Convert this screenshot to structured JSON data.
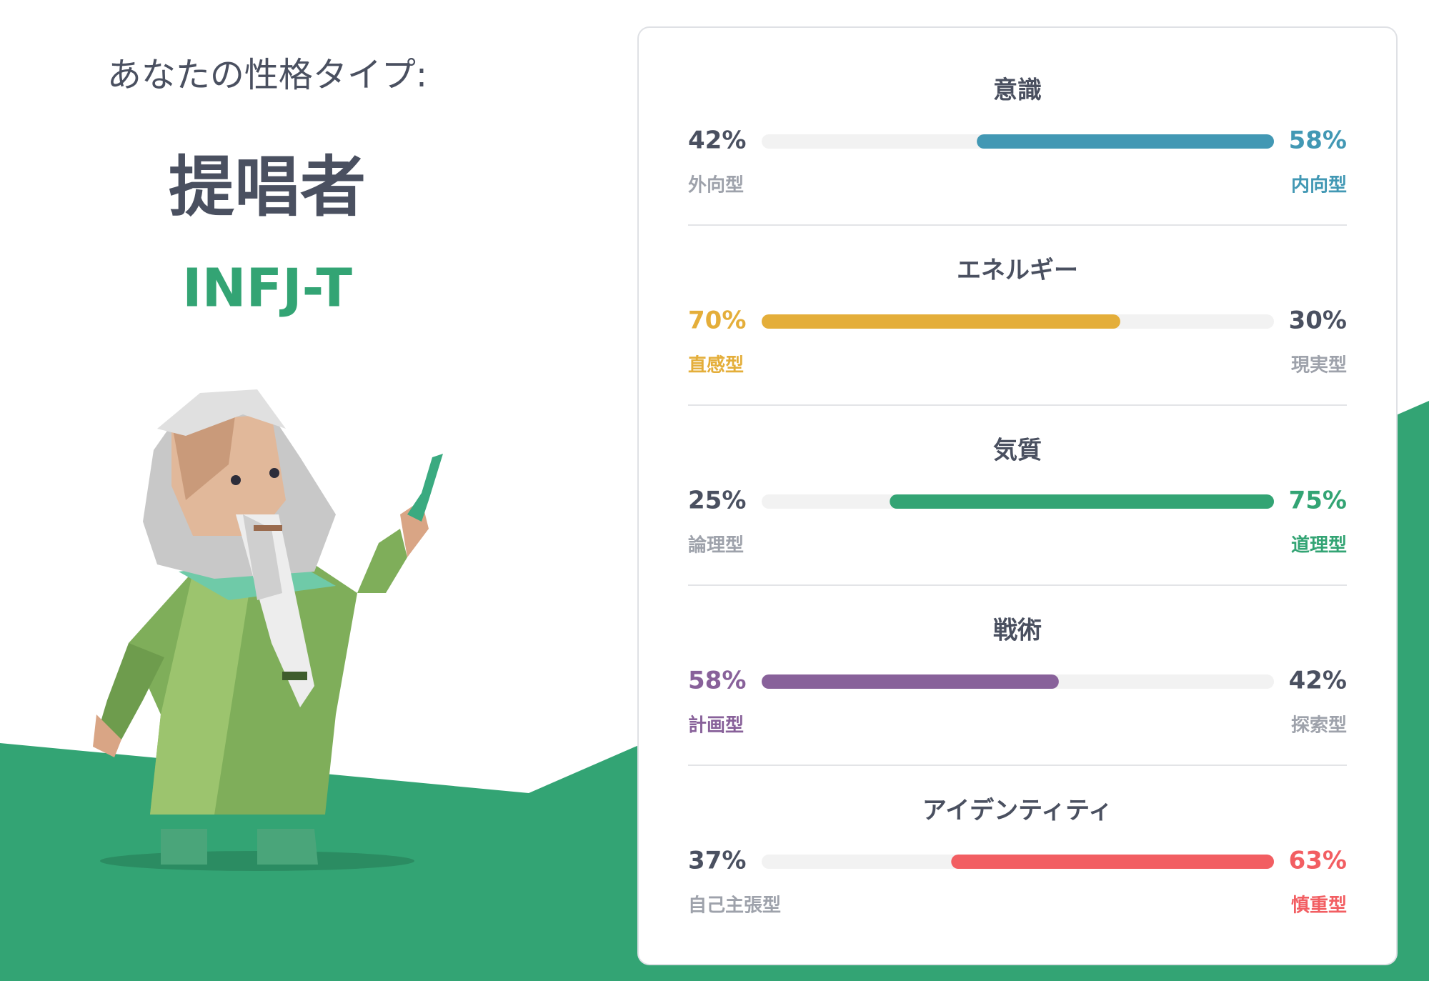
{
  "header": {
    "prompt": "あなたの性格タイプ:",
    "type_name": "提唱者",
    "code": "INFJ-T"
  },
  "traits": [
    {
      "title": "意識",
      "dominant": "right",
      "color": "#4298b4",
      "left": {
        "value": 42,
        "value_label": "42%",
        "name": "外向型"
      },
      "right": {
        "value": 58,
        "value_label": "58%",
        "name": "内向型"
      }
    },
    {
      "title": "エネルギー",
      "dominant": "left",
      "color": "#e4ae3a",
      "left": {
        "value": 70,
        "value_label": "70%",
        "name": "直感型"
      },
      "right": {
        "value": 30,
        "value_label": "30%",
        "name": "現実型"
      }
    },
    {
      "title": "気質",
      "dominant": "right",
      "color": "#33a474",
      "left": {
        "value": 25,
        "value_label": "25%",
        "name": "論理型"
      },
      "right": {
        "value": 75,
        "value_label": "75%",
        "name": "道理型"
      }
    },
    {
      "title": "戦術",
      "dominant": "left",
      "color": "#88619a",
      "left": {
        "value": 58,
        "value_label": "58%",
        "name": "計画型"
      },
      "right": {
        "value": 42,
        "value_label": "42%",
        "name": "探索型"
      }
    },
    {
      "title": "アイデンティティ",
      "dominant": "right",
      "color": "#f25e62",
      "left": {
        "value": 37,
        "value_label": "37%",
        "name": "自己主張型"
      },
      "right": {
        "value": 63,
        "value_label": "63%",
        "name": "慎重型"
      }
    }
  ]
}
